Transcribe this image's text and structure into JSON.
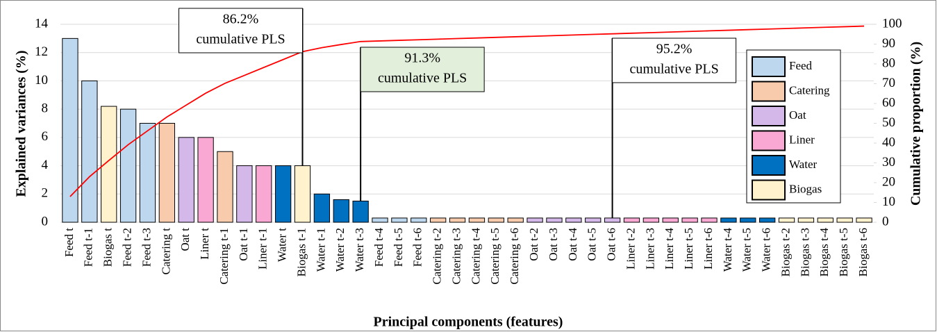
{
  "chart_data": {
    "type": "bar",
    "xlabel": "Principal components (features)",
    "ylabel": "Explained variances (%)",
    "y2label": "Cumulative proportion (%)",
    "categories": [
      "Feed t",
      "Feed t-1",
      "Biogas t",
      "Feed t-2",
      "Feed t-3",
      "Catering t",
      "Oat t",
      "Liner t",
      "Catering t-1",
      "Oat t-1",
      "Liner t-1",
      "Water t",
      "Biogas t-1",
      "Water t-1",
      "Water t-2",
      "Water t-3",
      "Feed t-4",
      "Feed t-5",
      "Feed t-6",
      "Catering t-2",
      "Catering t-3",
      "Catering t-4",
      "Catering t-5",
      "Catering t-6",
      "Oat t-2",
      "Oat t-3",
      "Oat t-4",
      "Oat t-5",
      "Oat t-6",
      "Liner t-2",
      "Liner t-3",
      "Liner t-4",
      "Liner t-5",
      "Liner t-6",
      "Water t-4",
      "Water t-5",
      "Water t-6",
      "Biogas t-2",
      "Biogas t-3",
      "Biogas t-4",
      "Biogas t-5",
      "Biogas t-6"
    ],
    "values": [
      13,
      10,
      8.2,
      8,
      7,
      7,
      6,
      6,
      5,
      4,
      4,
      4,
      4,
      2,
      1.6,
      1.5,
      0.3,
      0.3,
      0.3,
      0.3,
      0.3,
      0.3,
      0.3,
      0.3,
      0.3,
      0.3,
      0.3,
      0.3,
      0.3,
      0.3,
      0.3,
      0.3,
      0.3,
      0.3,
      0.3,
      0.3,
      0.3,
      0.3,
      0.3,
      0.3,
      0.3,
      0.3
    ],
    "colors": [
      "#bdd7ee",
      "#bdd7ee",
      "#fff2cc",
      "#bdd7ee",
      "#bdd7ee",
      "#f8cbad",
      "#d5b8ea",
      "#f9a8d4",
      "#f8cbad",
      "#d5b8ea",
      "#f9a8d4",
      "#0070c0",
      "#fff2cc",
      "#0070c0",
      "#0070c0",
      "#0070c0",
      "#bdd7ee",
      "#bdd7ee",
      "#bdd7ee",
      "#f8cbad",
      "#f8cbad",
      "#f8cbad",
      "#f8cbad",
      "#f8cbad",
      "#d5b8ea",
      "#d5b8ea",
      "#d5b8ea",
      "#d5b8ea",
      "#d5b8ea",
      "#f9a8d4",
      "#f9a8d4",
      "#f9a8d4",
      "#f9a8d4",
      "#f9a8d4",
      "#0070c0",
      "#0070c0",
      "#0070c0",
      "#fff2cc",
      "#fff2cc",
      "#fff2cc",
      "#fff2cc",
      "#fff2cc"
    ],
    "legend": [
      {
        "name": "Feed",
        "color": "#bdd7ee"
      },
      {
        "name": "Catering",
        "color": "#f8cbad"
      },
      {
        "name": "Oat",
        "color": "#d5b8ea"
      },
      {
        "name": "Liner",
        "color": "#f9a8d4"
      },
      {
        "name": "Water",
        "color": "#0070c0"
      },
      {
        "name": "Biogas",
        "color": "#fff2cc"
      }
    ],
    "line": {
      "color": "#ff0000",
      "axis": "y2",
      "values": [
        13,
        23,
        31.2,
        39.2,
        46.2,
        53.2,
        59.2,
        65.2,
        70.2,
        74.2,
        78.2,
        82.2,
        86.2,
        88.2,
        89.8,
        91.3,
        91.6,
        91.9,
        92.2,
        92.5,
        92.8,
        93.1,
        93.4,
        93.7,
        94.0,
        94.3,
        94.6,
        94.9,
        95.2,
        95.5,
        95.8,
        96.1,
        96.4,
        96.7,
        97.0,
        97.3,
        97.6,
        97.9,
        98.2,
        98.5,
        98.8,
        99.1
      ]
    },
    "ylim": [
      0,
      14
    ],
    "yticks": [
      0,
      2,
      4,
      6,
      8,
      10,
      12,
      14
    ],
    "y2lim": [
      0,
      100
    ],
    "y2ticks": [
      0,
      10,
      20,
      30,
      40,
      50,
      60,
      70,
      80,
      90,
      100
    ],
    "grid": true,
    "annotations": [
      {
        "lines": [
          "86.2%",
          "cumulative PLS"
        ],
        "category": "Biogas t-1",
        "color": "#ffffff"
      },
      {
        "lines": [
          "91.3%",
          "cumulative PLS"
        ],
        "category": "Water t-3",
        "color": "#e2efda"
      },
      {
        "lines": [
          "95.2%",
          "cumulative PLS"
        ],
        "category": "Oat t-6",
        "color": "#ffffff"
      }
    ]
  }
}
